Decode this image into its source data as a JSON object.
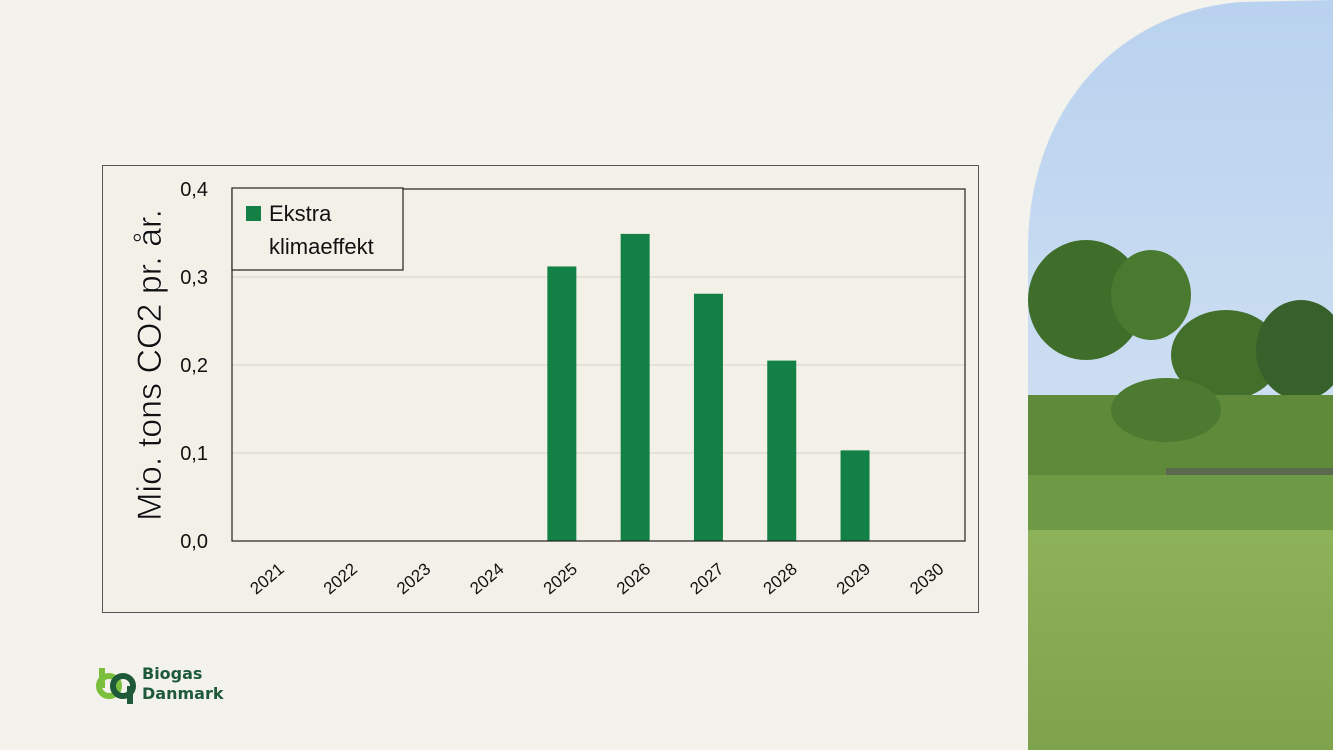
{
  "chart_data": {
    "type": "bar",
    "categories": [
      "2021",
      "2022",
      "2023",
      "2024",
      "2025",
      "2026",
      "2027",
      "2028",
      "2029",
      "2030"
    ],
    "series": [
      {
        "name": "Ekstra klimaeffekt",
        "values": [
          0,
          0,
          0,
          0,
          0.312,
          0.349,
          0.281,
          0.205,
          0.103,
          0
        ]
      }
    ],
    "ylabel": "Mio. tons CO2 pr. år.",
    "ylim": [
      0,
      0.4
    ],
    "yticks": [
      "0,0",
      "0,1",
      "0,2",
      "0,3",
      "0,4"
    ],
    "legend": {
      "line1": "Ekstra",
      "line2": "klimaeffekt",
      "placement": "top-left"
    },
    "grid": true,
    "bar_color": "#138145"
  },
  "logo": {
    "line1": "Biogas",
    "line2": "Danmark"
  },
  "colors": {
    "background": "#f3f2ec",
    "plot_background": "#f3f0e7",
    "bar": "#138145",
    "logo": "#1e5a3a"
  }
}
